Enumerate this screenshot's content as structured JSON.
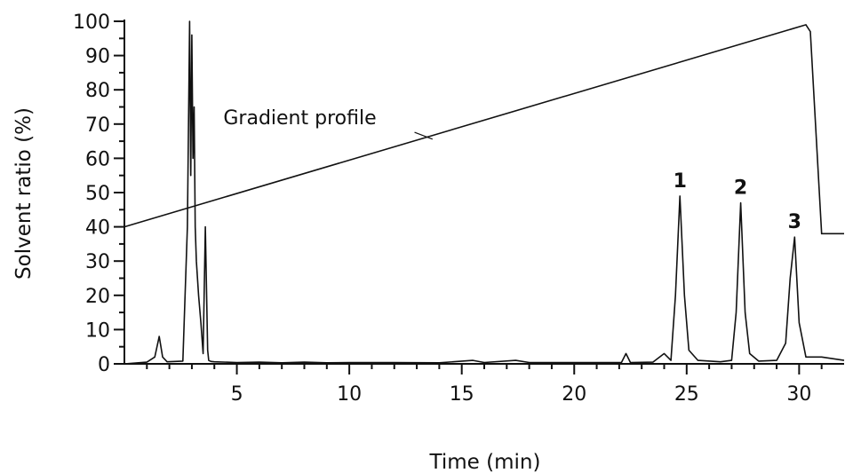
{
  "chart_data": {
    "type": "line",
    "xlabel": "Time (min)",
    "ylabel": "Solvent ratio (%)",
    "xlim": [
      0,
      32
    ],
    "ylim": [
      0,
      100
    ],
    "x_ticks": [
      5,
      10,
      15,
      20,
      25,
      30
    ],
    "y_ticks": [
      0,
      10,
      20,
      30,
      40,
      50,
      60,
      70,
      80,
      90,
      100
    ],
    "grid": false,
    "series": [
      {
        "name": "Gradient profile",
        "x": [
          0,
          30.3,
          30.5,
          31.0,
          32
        ],
        "y": [
          40,
          99,
          97,
          38,
          38
        ]
      },
      {
        "x": [
          0,
          1.0,
          1.35,
          1.55,
          1.7,
          1.9,
          2.6,
          2.8,
          2.9,
          2.95,
          3.0,
          3.05,
          3.1,
          3.15,
          3.2,
          3.3,
          3.4,
          3.5,
          3.6,
          3.7,
          3.75,
          3.85,
          4.0,
          5,
          6,
          7,
          8,
          9,
          10,
          12,
          14,
          15.5,
          16,
          17.4,
          18,
          20,
          22.1,
          22.3,
          22.5,
          23.5,
          24.0,
          24.3,
          24.5,
          24.7,
          24.9,
          25.1,
          25.5,
          26.5,
          27.0,
          27.2,
          27.4,
          27.6,
          27.8,
          28.2,
          29.0,
          29.4,
          29.6,
          29.8,
          30.0,
          30.3,
          31.0,
          32
        ],
        "y": [
          0,
          0.5,
          2,
          8,
          2,
          0.6,
          0.8,
          40,
          100,
          55,
          96,
          60,
          75,
          40,
          30,
          20,
          12,
          3,
          40,
          4,
          1,
          0.7,
          0.6,
          0.4,
          0.5,
          0.3,
          0.5,
          0.3,
          0.4,
          0.4,
          0.3,
          1,
          0.4,
          1,
          0.4,
          0.4,
          0.4,
          3,
          0.4,
          0.5,
          3,
          1,
          20,
          49,
          20,
          4,
          1,
          0.6,
          1,
          15,
          47,
          15,
          3,
          0.8,
          1,
          6,
          25,
          37,
          12,
          2,
          2,
          1
        ]
      }
    ],
    "annotations": {
      "gradient_label": "Gradient profile",
      "gradient_label_at": [
        4.4,
        70
      ],
      "gradient_leader_to": [
        13.7,
        65.6
      ],
      "peaks": [
        {
          "label": "1",
          "x": 24.7,
          "y": 49
        },
        {
          "label": "2",
          "x": 27.4,
          "y": 47
        },
        {
          "label": "3",
          "x": 29.8,
          "y": 37
        }
      ]
    }
  }
}
